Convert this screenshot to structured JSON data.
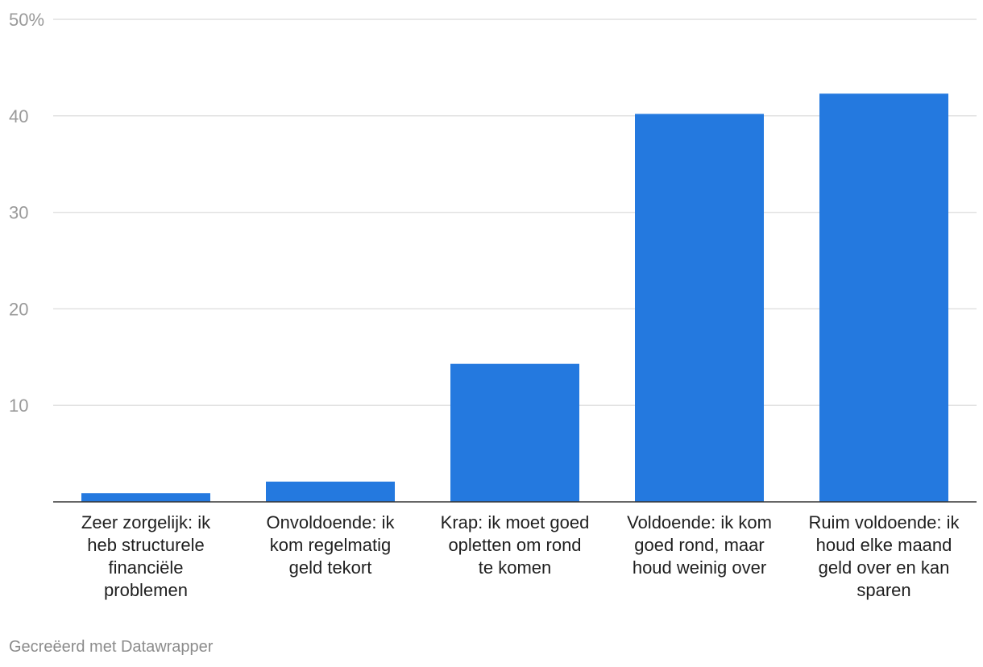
{
  "chart_data": {
    "type": "bar",
    "categories": [
      [
        "Zeer zorgelijk: ik",
        "heb structurele",
        "financiële",
        "problemen"
      ],
      [
        "Onvoldoende: ik",
        "kom regelmatig",
        "geld tekort"
      ],
      [
        "Krap: ik moet goed",
        "opletten om rond",
        "te komen"
      ],
      [
        "Voldoende: ik kom",
        "goed rond, maar",
        "houd weinig over"
      ],
      [
        "Ruim voldoende: ik",
        "houd elke maand",
        "geld over en kan",
        "sparen"
      ]
    ],
    "values": [
      0.9,
      2.1,
      14.3,
      40.2,
      42.3
    ],
    "y_ticks": [
      {
        "value": 10,
        "label": "10"
      },
      {
        "value": 20,
        "label": "20"
      },
      {
        "value": 30,
        "label": "30"
      },
      {
        "value": 40,
        "label": "40"
      },
      {
        "value": 50,
        "label": "50%"
      }
    ],
    "ylim": [
      0,
      50
    ],
    "grid": true,
    "bar_color": "#2479df"
  },
  "footer": {
    "credit": "Gecreëerd met Datawrapper"
  }
}
